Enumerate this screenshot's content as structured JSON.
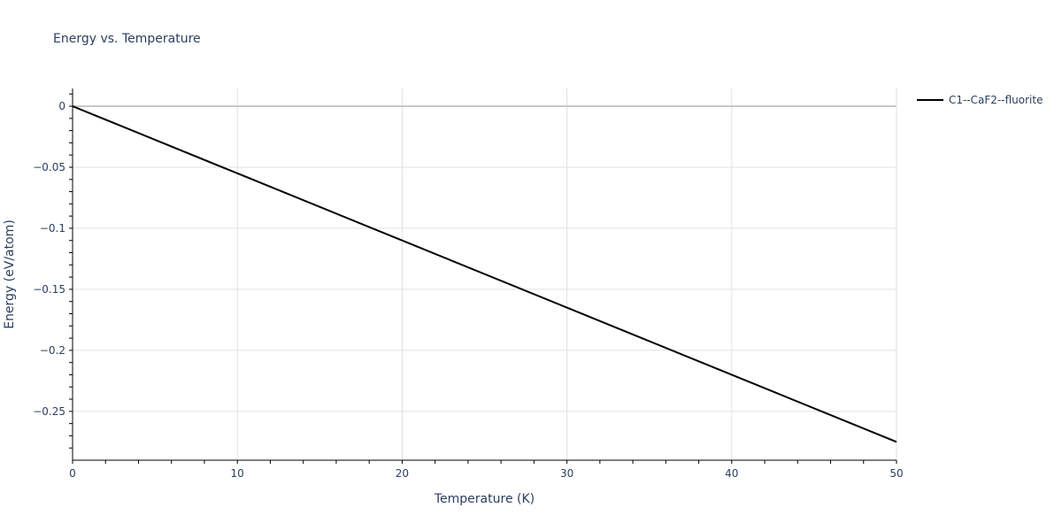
{
  "title": "Energy vs. Temperature",
  "legend": {
    "items": [
      {
        "label": "C1--CaF2--fluorite",
        "color": "#000000"
      }
    ]
  },
  "axes": {
    "x": {
      "title": "Temperature (K)",
      "ticks": [
        "0",
        "10",
        "20",
        "30",
        "40",
        "50"
      ]
    },
    "y": {
      "title": "Energy (eV/atom)",
      "ticks": [
        "0",
        "−0.05",
        "−0.1",
        "−0.15",
        "−0.2",
        "−0.25"
      ]
    }
  },
  "chart_data": {
    "type": "line",
    "title": "Energy vs. Temperature",
    "xlabel": "Temperature (K)",
    "ylabel": "Energy (eV/atom)",
    "xlim": [
      0,
      50
    ],
    "ylim": [
      -0.29,
      0.0145
    ],
    "x_ticks": [
      0,
      10,
      20,
      30,
      40,
      50
    ],
    "y_ticks": [
      0,
      -0.05,
      -0.1,
      -0.15,
      -0.2,
      -0.25
    ],
    "grid": true,
    "legend_position": "right-top",
    "series": [
      {
        "name": "C1--CaF2--fluorite",
        "color": "#000000",
        "x": [
          0,
          10,
          20,
          30,
          40,
          50
        ],
        "y": [
          0,
          -0.055,
          -0.11,
          -0.165,
          -0.22,
          -0.275
        ]
      }
    ]
  }
}
